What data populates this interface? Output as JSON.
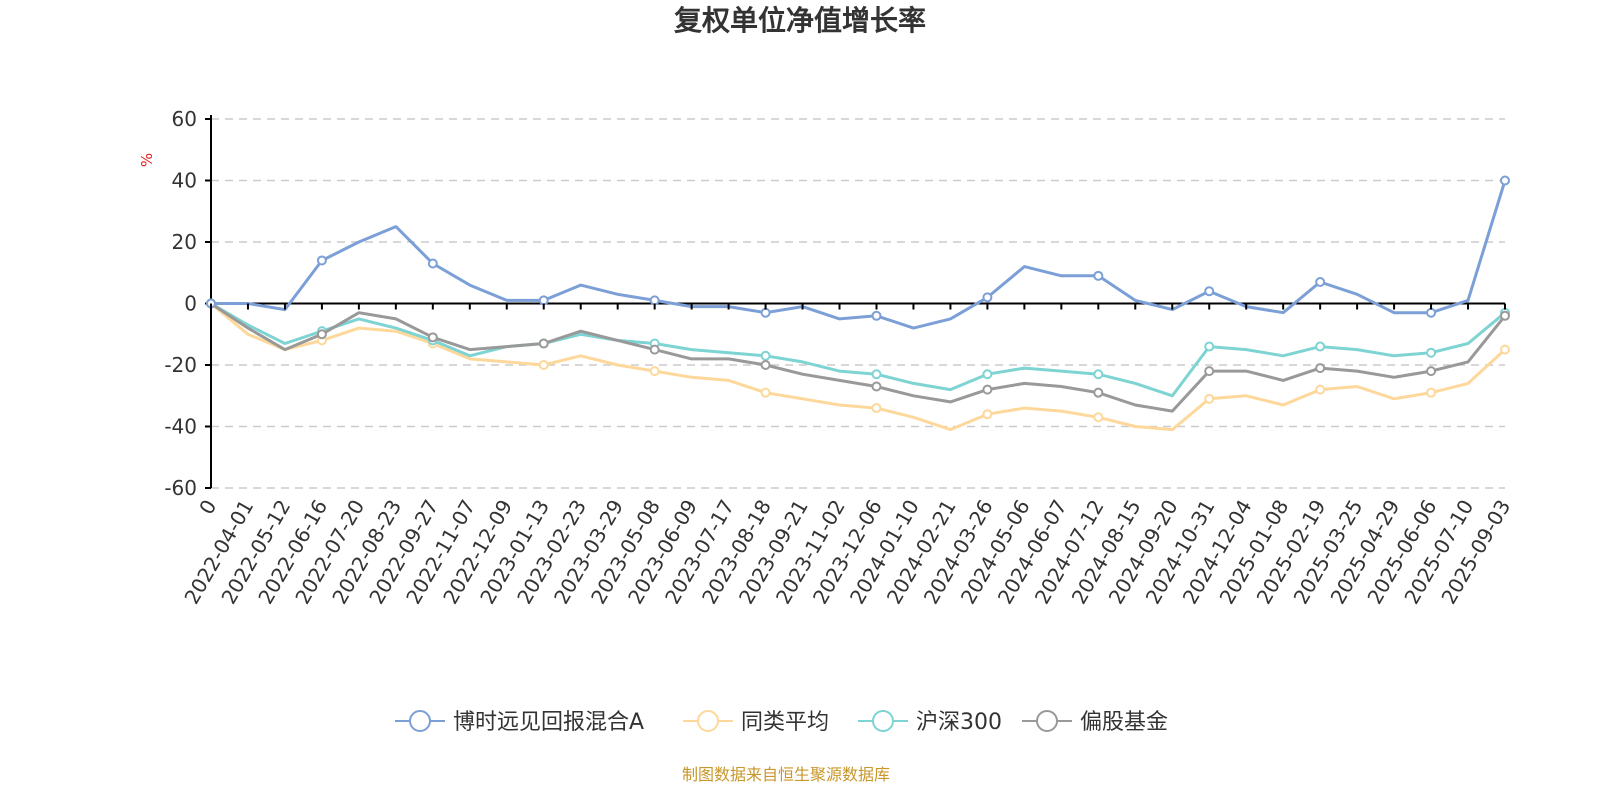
{
  "chart_data": {
    "type": "line",
    "title": "复权单位净值增长率",
    "ylabel": "%",
    "ylim": [
      -60,
      60
    ],
    "yticks": [
      "60",
      "40",
      "20",
      "0",
      "-20",
      "-40",
      "-60"
    ],
    "grid": true,
    "legend_position": "bottom",
    "source": "制图数据来自恒生聚源数据库",
    "categories": [
      "0",
      "2022-04-01",
      "2022-05-12",
      "2022-06-16",
      "2022-07-20",
      "2022-08-23",
      "2022-09-27",
      "2022-11-07",
      "2022-12-09",
      "2023-01-13",
      "2023-02-23",
      "2023-03-29",
      "2023-05-08",
      "2023-06-09",
      "2023-07-17",
      "2023-08-18",
      "2023-09-21",
      "2023-11-02",
      "2023-12-06",
      "2024-01-10",
      "2024-02-21",
      "2024-03-26",
      "2024-05-06",
      "2024-06-07",
      "2024-07-12",
      "2024-08-15",
      "2024-09-20",
      "2024-10-31",
      "2024-12-04",
      "2025-01-08",
      "2025-02-19",
      "2025-03-25",
      "2025-04-29",
      "2025-06-06",
      "2025-07-10",
      "2025-09-03"
    ],
    "series": [
      {
        "name": "博时远见回报混合A",
        "color": "#7b9fd6",
        "values": [
          0,
          0,
          -2,
          14,
          20,
          25,
          13,
          6,
          1,
          1,
          6,
          3,
          1,
          -1,
          -1,
          -3,
          -1,
          -5,
          -4,
          -8,
          -5,
          2,
          12,
          9,
          9,
          1,
          -2,
          4,
          -1,
          -3,
          7,
          3,
          -3,
          -3,
          1,
          40
        ]
      },
      {
        "name": "同类平均",
        "color": "#fdd89a",
        "values": [
          0,
          -10,
          -15,
          -12,
          -8,
          -9,
          -13,
          -18,
          -19,
          -20,
          -17,
          -20,
          -22,
          -24,
          -25,
          -29,
          -31,
          -33,
          -34,
          -37,
          -41,
          -36,
          -34,
          -35,
          -37,
          -40,
          -41,
          -31,
          -30,
          -33,
          -28,
          -27,
          -31,
          -29,
          -26,
          -15
        ]
      },
      {
        "name": "沪深300",
        "color": "#7ed3d3",
        "values": [
          0,
          -7,
          -13,
          -9,
          -5,
          -8,
          -12,
          -17,
          -14,
          -13,
          -10,
          -12,
          -13,
          -15,
          -16,
          -17,
          -19,
          -22,
          -23,
          -26,
          -28,
          -23,
          -21,
          -22,
          -23,
          -26,
          -30,
          -14,
          -15,
          -17,
          -14,
          -15,
          -17,
          -16,
          -13,
          -3
        ]
      },
      {
        "name": "偏股基金",
        "color": "#999999",
        "values": [
          0,
          -8,
          -15,
          -10,
          -3,
          -5,
          -11,
          -15,
          -14,
          -13,
          -9,
          -12,
          -15,
          -18,
          -18,
          -20,
          -23,
          -25,
          -27,
          -30,
          -32,
          -28,
          -26,
          -27,
          -29,
          -33,
          -35,
          -22,
          -22,
          -25,
          -21,
          -22,
          -24,
          -22,
          -19,
          -4
        ]
      }
    ]
  }
}
